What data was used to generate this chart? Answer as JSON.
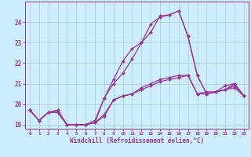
{
  "xlabel": "Windchill (Refroidissement éolien,°C)",
  "bg_color": "#cceeff",
  "plot_bg_color": "#cceeff",
  "grid_color": "#aacccc",
  "line_color": "#993399",
  "xlim": [
    -0.5,
    23.5
  ],
  "ylim": [
    18.8,
    25.0
  ],
  "yticks": [
    19,
    20,
    21,
    22,
    23,
    24
  ],
  "xticks": [
    0,
    1,
    2,
    3,
    4,
    5,
    6,
    7,
    8,
    9,
    10,
    11,
    12,
    13,
    14,
    15,
    16,
    17,
    18,
    19,
    20,
    21,
    22,
    23
  ],
  "series": [
    [
      19.7,
      19.2,
      19.6,
      19.6,
      19.0,
      19.0,
      19.0,
      19.1,
      19.4,
      20.2,
      20.4,
      20.5,
      20.7,
      20.9,
      21.1,
      21.2,
      21.3,
      21.4,
      20.5,
      20.6,
      20.6,
      20.7,
      20.8,
      20.4
    ],
    [
      19.7,
      19.2,
      19.6,
      19.6,
      19.0,
      19.0,
      19.0,
      19.1,
      20.3,
      21.2,
      22.1,
      22.7,
      23.0,
      23.5,
      24.3,
      24.35,
      24.55,
      23.3,
      21.4,
      20.5,
      20.6,
      20.7,
      20.9,
      20.4
    ],
    [
      19.7,
      19.2,
      19.6,
      19.7,
      19.0,
      19.0,
      19.0,
      19.2,
      20.3,
      21.0,
      21.5,
      22.2,
      23.0,
      23.9,
      24.25,
      24.35,
      24.55,
      23.3,
      21.4,
      20.5,
      20.6,
      20.9,
      21.0,
      20.4
    ],
    [
      19.7,
      19.2,
      19.6,
      19.7,
      19.0,
      19.0,
      19.0,
      19.1,
      19.5,
      20.2,
      20.4,
      20.5,
      20.8,
      21.0,
      21.2,
      21.3,
      21.4,
      21.4,
      20.5,
      20.5,
      20.6,
      20.7,
      21.0,
      20.4
    ]
  ],
  "marker": "D",
  "markersize": 2.0,
  "linewidth": 0.9
}
